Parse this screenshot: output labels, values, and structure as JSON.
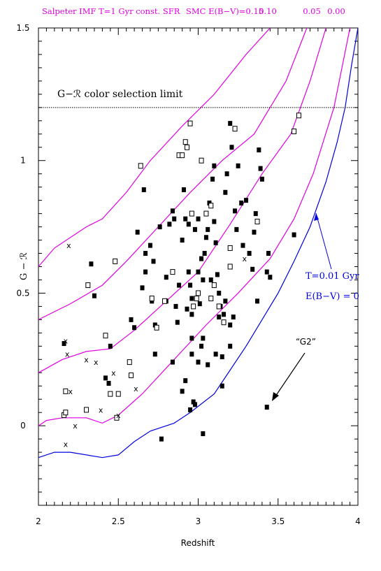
{
  "chart_data": {
    "type": "scatter",
    "title": "",
    "xlabel": "Redshift",
    "ylabel": "G  −  ℛ",
    "xlim": [
      2,
      4
    ],
    "ylim": [
      -0.3,
      1.5
    ],
    "xticks": [
      "2",
      "2.5",
      "3",
      "3.5",
      "4"
    ],
    "yticks": [
      "0",
      "0.5",
      "1",
      "1.5"
    ],
    "header": {
      "model": "Salpeter IMF T=1 Gyr const. SFR",
      "ext_label": "SMC E(B−V)=0.15",
      "ext_values": [
        "0.10",
        "0.05",
        "0.00"
      ]
    },
    "annotations": {
      "limit_label": "G−ℛ color selection limit",
      "t_label": "T=0.01 Gyr",
      "ebv_label": "E(B−V) = 0",
      "g2_label": "“G2”"
    },
    "limit_value": 1.2,
    "colors": {
      "magenta": "#e000e0",
      "blue": "#0000e0",
      "black": "#000000"
    },
    "tracks_magenta": [
      {
        "name": "E(B-V)=0.15",
        "x": [
          2.0,
          2.1,
          2.3,
          2.4,
          2.55,
          2.7,
          2.9,
          3.1,
          3.3,
          3.45
        ],
        "y": [
          0.6,
          0.67,
          0.75,
          0.78,
          0.88,
          1.0,
          1.13,
          1.25,
          1.4,
          1.5
        ]
      },
      {
        "name": "E(B-V)=0.10",
        "x": [
          2.0,
          2.2,
          2.4,
          2.55,
          2.75,
          2.95,
          3.15,
          3.35,
          3.55,
          3.68
        ],
        "y": [
          0.4,
          0.46,
          0.53,
          0.62,
          0.75,
          0.88,
          1.0,
          1.1,
          1.3,
          1.5
        ]
      },
      {
        "name": "E(B-V)=0.05",
        "x": [
          2.0,
          2.15,
          2.3,
          2.45,
          2.6,
          2.8,
          3.0,
          3.2,
          3.4,
          3.58,
          3.7,
          3.8
        ],
        "y": [
          0.2,
          0.25,
          0.28,
          0.29,
          0.36,
          0.47,
          0.58,
          0.76,
          0.95,
          1.1,
          1.3,
          1.5
        ]
      },
      {
        "name": "E(B-V)=0.00",
        "x": [
          2.0,
          2.05,
          2.15,
          2.3,
          2.4,
          2.5,
          2.65,
          2.85,
          3.05,
          3.25,
          3.45,
          3.6,
          3.72,
          3.85,
          3.95
        ],
        "y": [
          0.0,
          0.02,
          0.03,
          0.03,
          0.01,
          0.04,
          0.12,
          0.25,
          0.38,
          0.5,
          0.63,
          0.78,
          0.95,
          1.2,
          1.5
        ]
      }
    ],
    "track_blue": {
      "name": "T=0.01 Gyr E(B-V)=0",
      "x": [
        2.0,
        2.1,
        2.2,
        2.4,
        2.5,
        2.6,
        2.7,
        2.85,
        2.95,
        3.1,
        3.2,
        3.3,
        3.4,
        3.5,
        3.6,
        3.7,
        3.8,
        3.87,
        3.92,
        3.96,
        4.0
      ],
      "y": [
        -0.12,
        -0.1,
        -0.1,
        -0.12,
        -0.11,
        -0.06,
        -0.02,
        0.01,
        0.05,
        0.12,
        0.21,
        0.3,
        0.4,
        0.5,
        0.62,
        0.75,
        0.92,
        1.07,
        1.2,
        1.36,
        1.5
      ]
    },
    "filled_squares": {
      "x": [
        2.16,
        2.33,
        2.35,
        2.42,
        2.44,
        2.45,
        2.58,
        2.6,
        2.65,
        2.66,
        2.67,
        2.67,
        2.7,
        2.72,
        2.73,
        2.76,
        2.8,
        2.8,
        2.82,
        2.84,
        2.85,
        2.86,
        2.87,
        2.88,
        2.9,
        2.91,
        2.92,
        2.93,
        2.94,
        2.94,
        2.95,
        2.96,
        2.96,
        2.97,
        2.98,
        2.98,
        3.0,
        3.0,
        3.01,
        3.02,
        3.02,
        3.03,
        3.04,
        3.05,
        3.06,
        3.07,
        3.08,
        3.09,
        3.1,
        3.1,
        3.11,
        3.12,
        3.13,
        3.14,
        3.15,
        3.16,
        3.17,
        3.18,
        3.2,
        3.2,
        3.21,
        3.22,
        3.23,
        3.24,
        3.25,
        3.27,
        3.28,
        3.3,
        3.32,
        3.34,
        3.35,
        3.36,
        3.38,
        3.39,
        3.4,
        3.43,
        3.44,
        3.45,
        3.6,
        2.62,
        2.71,
        2.77,
        2.84,
        2.96,
        3.0,
        3.03,
        3.15,
        2.9,
        2.73,
        2.92,
        3.06,
        3.13,
        3.17
      ],
      "y": [
        0.31,
        0.61,
        0.49,
        0.18,
        0.16,
        0.3,
        0.4,
        0.37,
        0.52,
        0.89,
        0.58,
        0.65,
        0.68,
        0.62,
        0.38,
        0.75,
        0.56,
        0.47,
        0.76,
        0.81,
        0.78,
        0.45,
        0.39,
        0.53,
        0.7,
        0.89,
        0.78,
        0.44,
        0.58,
        0.76,
        0.53,
        0.48,
        0.42,
        0.09,
        0.08,
        0.74,
        0.78,
        0.58,
        0.46,
        0.3,
        0.63,
        0.55,
        0.65,
        0.71,
        0.74,
        0.84,
        0.55,
        0.93,
        0.98,
        0.77,
        0.69,
        0.57,
        0.5,
        0.45,
        0.15,
        0.42,
        0.88,
        0.95,
        0.38,
        1.14,
        1.05,
        0.41,
        0.81,
        0.74,
        0.98,
        0.84,
        0.68,
        0.85,
        0.65,
        0.59,
        0.73,
        0.8,
        1.04,
        0.97,
        0.93,
        0.58,
        0.65,
        0.56,
        0.72,
        0.73,
        0.47,
        -0.05,
        0.24,
        0.27,
        0.24,
        0.33,
        0.26,
        0.13,
        0.27,
        0.17,
        0.23,
        0.41,
        0.47
      ],
      "extra_x": [
        2.95,
        3.43,
        3.03,
        3.2,
        2.96,
        3.11,
        3.37
      ],
      "extra_y": [
        0.06,
        0.07,
        -0.03,
        0.3,
        0.33,
        0.27,
        0.47
      ]
    },
    "open_squares": {
      "x": [
        2.17,
        2.16,
        2.17,
        2.3,
        2.31,
        2.42,
        2.45,
        2.48,
        2.49,
        2.5,
        2.57,
        2.58,
        2.64,
        2.71,
        2.74,
        2.79,
        2.84,
        2.88,
        2.9,
        2.92,
        2.93,
        2.95,
        2.96,
        2.97,
        3.0,
        3.05,
        3.08,
        3.1,
        3.13,
        3.16,
        3.2,
        3.23,
        3.37,
        3.6,
        3.63,
        2.99,
        3.2,
        3.08,
        3.02
      ],
      "y": [
        0.13,
        0.04,
        0.05,
        0.06,
        0.53,
        0.34,
        0.12,
        0.62,
        0.03,
        0.12,
        0.24,
        0.19,
        0.98,
        0.48,
        0.37,
        0.47,
        0.58,
        1.02,
        1.02,
        1.07,
        1.05,
        1.14,
        0.8,
        0.45,
        0.5,
        0.8,
        0.83,
        0.53,
        0.45,
        0.39,
        0.6,
        1.12,
        0.77,
        1.11,
        1.17,
        0.48,
        0.67,
        0.48,
        1.0
      ]
    },
    "crosses": {
      "x": [
        2.19,
        2.3,
        2.18,
        2.17,
        2.2,
        2.36,
        2.39,
        2.47,
        2.5,
        2.61,
        2.17,
        2.23,
        3.29
      ],
      "y": [
        0.68,
        0.25,
        0.27,
        0.32,
        0.13,
        0.24,
        0.06,
        0.2,
        0.04,
        0.14,
        -0.07,
        0.0,
        0.63
      ]
    }
  }
}
